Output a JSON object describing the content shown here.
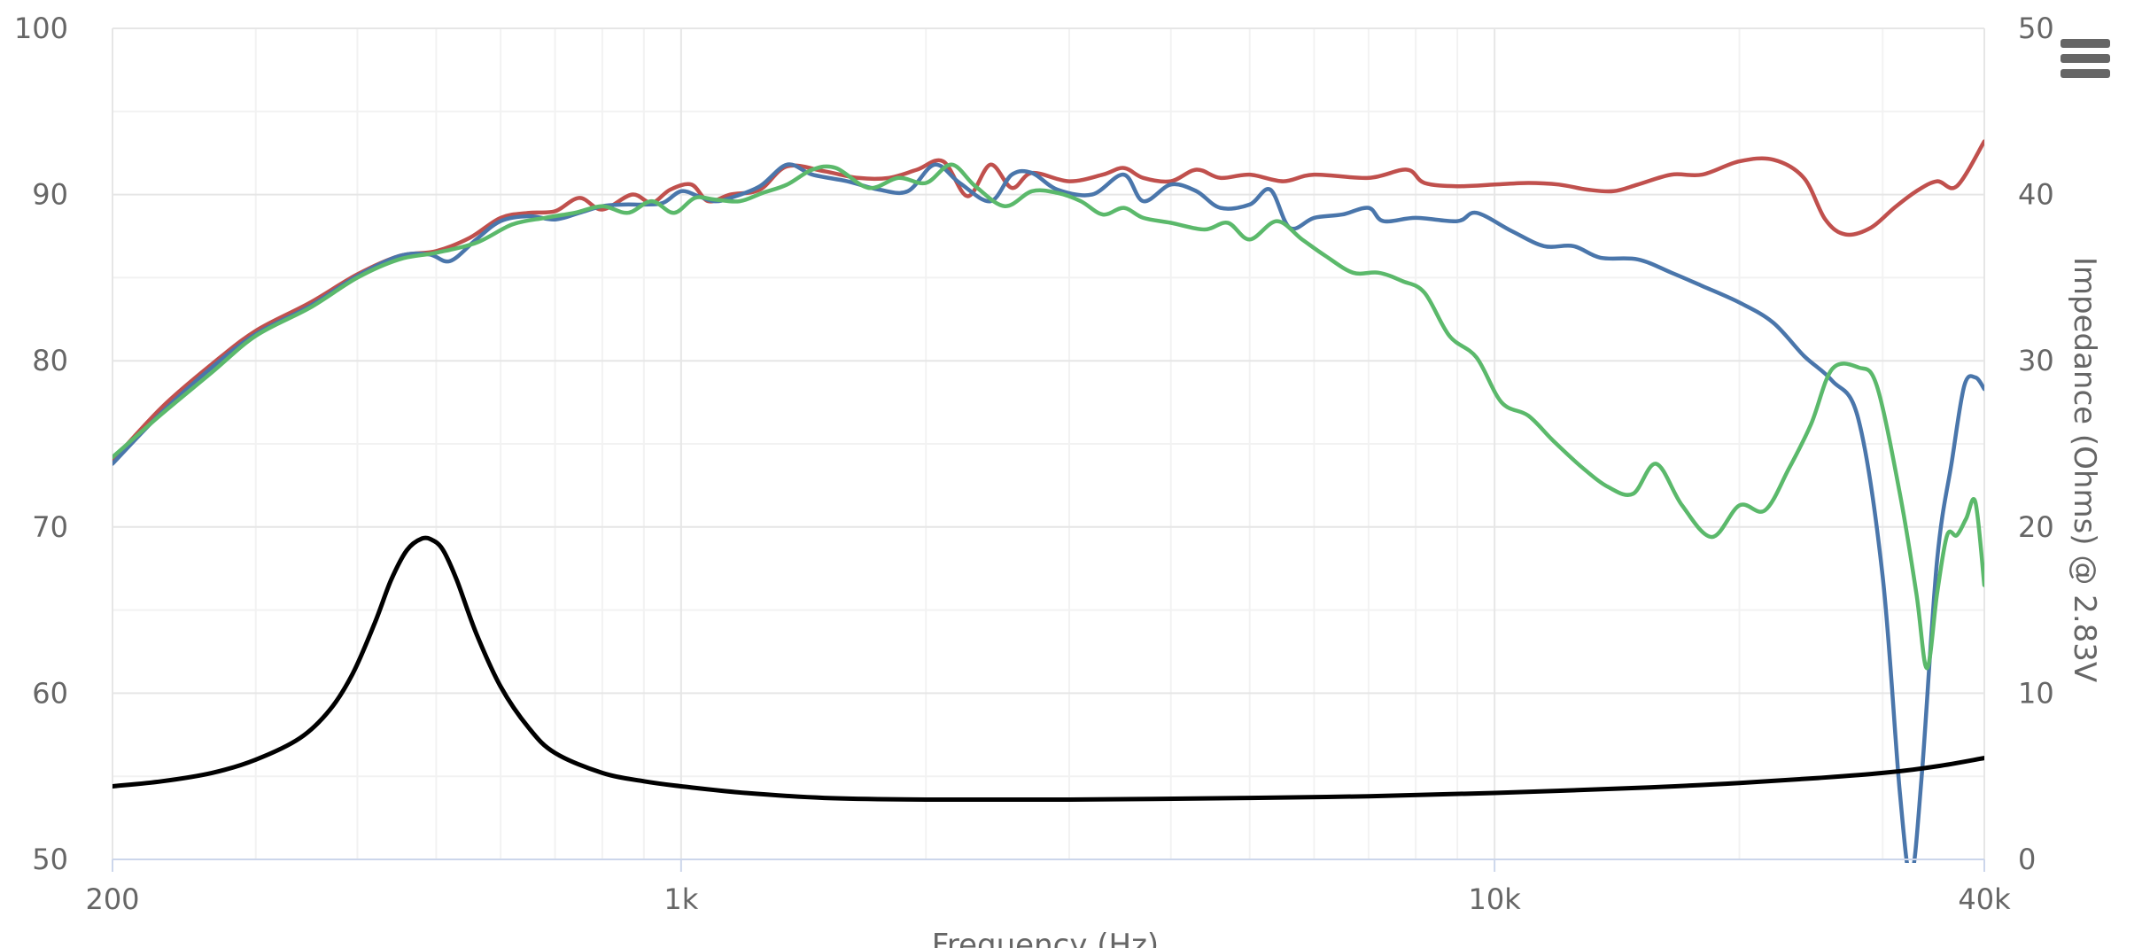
{
  "chart_data": {
    "type": "line",
    "title": "",
    "xlabel": "Frequency (Hz)",
    "ylabel": "",
    "y2label": "Impedance (Ohms) @ 2.83V",
    "xscale": "log",
    "xlim": [
      200,
      40000
    ],
    "ylim": [
      50,
      100
    ],
    "y2lim": [
      0,
      50
    ],
    "grid": true,
    "legend": "none",
    "x_ticks": [
      {
        "value": 200,
        "label": "200"
      },
      {
        "value": 1000,
        "label": "1k"
      },
      {
        "value": 10000,
        "label": "10k"
      },
      {
        "value": 40000,
        "label": "40k"
      }
    ],
    "y_ticks": [
      {
        "value": 50,
        "label": "50"
      },
      {
        "value": 60,
        "label": "60"
      },
      {
        "value": 70,
        "label": "70"
      },
      {
        "value": 80,
        "label": "80"
      },
      {
        "value": 90,
        "label": "90"
      },
      {
        "value": 100,
        "label": "100"
      }
    ],
    "y2_ticks": [
      {
        "value": 0,
        "label": "0"
      },
      {
        "value": 10,
        "label": "10"
      },
      {
        "value": 20,
        "label": "20"
      },
      {
        "value": 30,
        "label": "30"
      },
      {
        "value": 40,
        "label": "40"
      },
      {
        "value": 50,
        "label": "50"
      }
    ],
    "series": [
      {
        "color": "#c0504d",
        "axis": "left",
        "points": [
          [
            200,
            74
          ],
          [
            230,
            77.2
          ],
          [
            265,
            79.8
          ],
          [
            300,
            81.8
          ],
          [
            350,
            83.5
          ],
          [
            400,
            85.2
          ],
          [
            450,
            86.3
          ],
          [
            500,
            86.6
          ],
          [
            550,
            87.4
          ],
          [
            600,
            88.6
          ],
          [
            650,
            88.9
          ],
          [
            700,
            89.0
          ],
          [
            750,
            89.8
          ],
          [
            800,
            89.1
          ],
          [
            870,
            90.0
          ],
          [
            920,
            89.5
          ],
          [
            970,
            90.3
          ],
          [
            1030,
            90.6
          ],
          [
            1080,
            89.6
          ],
          [
            1150,
            90.0
          ],
          [
            1250,
            90.3
          ],
          [
            1350,
            91.7
          ],
          [
            1500,
            91.4
          ],
          [
            1650,
            91.0
          ],
          [
            1800,
            91.0
          ],
          [
            1950,
            91.5
          ],
          [
            2100,
            92.0
          ],
          [
            2250,
            89.9
          ],
          [
            2400,
            91.8
          ],
          [
            2550,
            90.4
          ],
          [
            2700,
            91.3
          ],
          [
            3000,
            90.8
          ],
          [
            3300,
            91.2
          ],
          [
            3500,
            91.6
          ],
          [
            3700,
            91.0
          ],
          [
            4000,
            90.8
          ],
          [
            4300,
            91.5
          ],
          [
            4600,
            91.0
          ],
          [
            5000,
            91.2
          ],
          [
            5500,
            90.8
          ],
          [
            6000,
            91.2
          ],
          [
            7000,
            91.0
          ],
          [
            7800,
            91.5
          ],
          [
            8200,
            90.7
          ],
          [
            9000,
            90.5
          ],
          [
            10000,
            90.6
          ],
          [
            11000,
            90.7
          ],
          [
            12000,
            90.6
          ],
          [
            13000,
            90.3
          ],
          [
            14000,
            90.2
          ],
          [
            15000,
            90.6
          ],
          [
            16500,
            91.2
          ],
          [
            18000,
            91.2
          ],
          [
            20000,
            92.0
          ],
          [
            22000,
            92.1
          ],
          [
            24000,
            91.0
          ],
          [
            25500,
            88.5
          ],
          [
            27000,
            87.6
          ],
          [
            29000,
            88.0
          ],
          [
            31000,
            89.2
          ],
          [
            33000,
            90.2
          ],
          [
            35000,
            90.8
          ],
          [
            37000,
            90.5
          ],
          [
            40000,
            93.2
          ]
        ]
      },
      {
        "color": "#4a76ab",
        "axis": "left",
        "points": [
          [
            200,
            73.8
          ],
          [
            230,
            76.9
          ],
          [
            265,
            79.6
          ],
          [
            300,
            81.6
          ],
          [
            350,
            83.3
          ],
          [
            400,
            85.1
          ],
          [
            450,
            86.3
          ],
          [
            490,
            86.4
          ],
          [
            520,
            86.0
          ],
          [
            560,
            87.3
          ],
          [
            600,
            88.4
          ],
          [
            650,
            88.7
          ],
          [
            700,
            88.5
          ],
          [
            750,
            88.9
          ],
          [
            800,
            89.3
          ],
          [
            850,
            89.4
          ],
          [
            900,
            89.4
          ],
          [
            950,
            89.5
          ],
          [
            1000,
            90.2
          ],
          [
            1050,
            89.9
          ],
          [
            1100,
            89.6
          ],
          [
            1150,
            89.8
          ],
          [
            1250,
            90.5
          ],
          [
            1350,
            91.8
          ],
          [
            1450,
            91.2
          ],
          [
            1600,
            90.8
          ],
          [
            1750,
            90.3
          ],
          [
            1900,
            90.2
          ],
          [
            2050,
            91.8
          ],
          [
            2200,
            90.7
          ],
          [
            2400,
            89.6
          ],
          [
            2550,
            91.2
          ],
          [
            2700,
            91.3
          ],
          [
            2900,
            90.3
          ],
          [
            3200,
            90.0
          ],
          [
            3500,
            91.2
          ],
          [
            3700,
            89.6
          ],
          [
            4000,
            90.6
          ],
          [
            4300,
            90.2
          ],
          [
            4600,
            89.2
          ],
          [
            5000,
            89.4
          ],
          [
            5300,
            90.3
          ],
          [
            5600,
            88.0
          ],
          [
            6000,
            88.6
          ],
          [
            6500,
            88.8
          ],
          [
            7000,
            89.2
          ],
          [
            7300,
            88.4
          ],
          [
            8000,
            88.6
          ],
          [
            9000,
            88.4
          ],
          [
            9500,
            88.9
          ],
          [
            10500,
            87.8
          ],
          [
            11500,
            86.9
          ],
          [
            12500,
            86.9
          ],
          [
            13500,
            86.2
          ],
          [
            15000,
            86.1
          ],
          [
            16500,
            85.3
          ],
          [
            18000,
            84.5
          ],
          [
            20000,
            83.5
          ],
          [
            22000,
            82.3
          ],
          [
            24000,
            80.3
          ],
          [
            26000,
            78.8
          ],
          [
            28000,
            76.5
          ],
          [
            30000,
            67.0
          ],
          [
            31500,
            54.0
          ],
          [
            32500,
            49.0
          ],
          [
            33500,
            55.0
          ],
          [
            35000,
            68.0
          ],
          [
            36500,
            74.0
          ],
          [
            37800,
            78.5
          ],
          [
            39000,
            79.0
          ],
          [
            40000,
            78.3
          ]
        ]
      },
      {
        "color": "#5bb96b",
        "axis": "left",
        "points": [
          [
            200,
            74.2
          ],
          [
            230,
            76.8
          ],
          [
            265,
            79.3
          ],
          [
            300,
            81.5
          ],
          [
            350,
            83.2
          ],
          [
            400,
            85.0
          ],
          [
            450,
            86.1
          ],
          [
            500,
            86.5
          ],
          [
            560,
            87.1
          ],
          [
            620,
            88.2
          ],
          [
            680,
            88.6
          ],
          [
            740,
            88.9
          ],
          [
            800,
            89.3
          ],
          [
            860,
            88.9
          ],
          [
            920,
            89.6
          ],
          [
            980,
            88.9
          ],
          [
            1040,
            89.8
          ],
          [
            1100,
            89.7
          ],
          [
            1180,
            89.6
          ],
          [
            1260,
            90.1
          ],
          [
            1350,
            90.6
          ],
          [
            1450,
            91.5
          ],
          [
            1550,
            91.6
          ],
          [
            1700,
            90.4
          ],
          [
            1850,
            91.0
          ],
          [
            2000,
            90.7
          ],
          [
            2150,
            91.8
          ],
          [
            2300,
            90.5
          ],
          [
            2500,
            89.3
          ],
          [
            2700,
            90.2
          ],
          [
            2900,
            90.1
          ],
          [
            3100,
            89.6
          ],
          [
            3300,
            88.8
          ],
          [
            3500,
            89.2
          ],
          [
            3700,
            88.6
          ],
          [
            4000,
            88.3
          ],
          [
            4400,
            87.9
          ],
          [
            4700,
            88.3
          ],
          [
            5000,
            87.3
          ],
          [
            5400,
            88.4
          ],
          [
            5800,
            87.3
          ],
          [
            6200,
            86.3
          ],
          [
            6700,
            85.3
          ],
          [
            7200,
            85.3
          ],
          [
            7700,
            84.8
          ],
          [
            8200,
            84.1
          ],
          [
            8800,
            81.5
          ],
          [
            9500,
            80.2
          ],
          [
            10200,
            77.5
          ],
          [
            11000,
            76.7
          ],
          [
            11800,
            75.2
          ],
          [
            12800,
            73.6
          ],
          [
            13800,
            72.4
          ],
          [
            14800,
            72.0
          ],
          [
            15800,
            73.8
          ],
          [
            17000,
            71.3
          ],
          [
            18500,
            69.4
          ],
          [
            20000,
            71.3
          ],
          [
            21500,
            71.0
          ],
          [
            23000,
            73.5
          ],
          [
            24500,
            76.2
          ],
          [
            26000,
            79.5
          ],
          [
            28000,
            79.6
          ],
          [
            29500,
            78.5
          ],
          [
            31500,
            72.0
          ],
          [
            33000,
            66.0
          ],
          [
            34000,
            61.5
          ],
          [
            35000,
            66.0
          ],
          [
            36000,
            69.5
          ],
          [
            37000,
            69.5
          ],
          [
            38000,
            70.5
          ],
          [
            39000,
            71.5
          ],
          [
            40000,
            66.5
          ]
        ]
      },
      {
        "color": "#000000",
        "axis": "right",
        "points": [
          [
            200,
            4.4
          ],
          [
            230,
            4.7
          ],
          [
            265,
            5.2
          ],
          [
            300,
            6.0
          ],
          [
            340,
            7.3
          ],
          [
            370,
            9.0
          ],
          [
            395,
            11.2
          ],
          [
            420,
            14.2
          ],
          [
            440,
            16.8
          ],
          [
            460,
            18.6
          ],
          [
            480,
            19.3
          ],
          [
            495,
            19.2
          ],
          [
            510,
            18.6
          ],
          [
            530,
            16.8
          ],
          [
            560,
            13.6
          ],
          [
            600,
            10.4
          ],
          [
            650,
            7.9
          ],
          [
            700,
            6.4
          ],
          [
            800,
            5.2
          ],
          [
            900,
            4.7
          ],
          [
            1000,
            4.4
          ],
          [
            1200,
            4.0
          ],
          [
            1500,
            3.7
          ],
          [
            2000,
            3.6
          ],
          [
            3000,
            3.6
          ],
          [
            5000,
            3.7
          ],
          [
            7000,
            3.8
          ],
          [
            10000,
            4.0
          ],
          [
            15000,
            4.3
          ],
          [
            20000,
            4.6
          ],
          [
            25000,
            4.9
          ],
          [
            30000,
            5.2
          ],
          [
            35000,
            5.6
          ],
          [
            40000,
            6.1
          ]
        ]
      }
    ]
  }
}
